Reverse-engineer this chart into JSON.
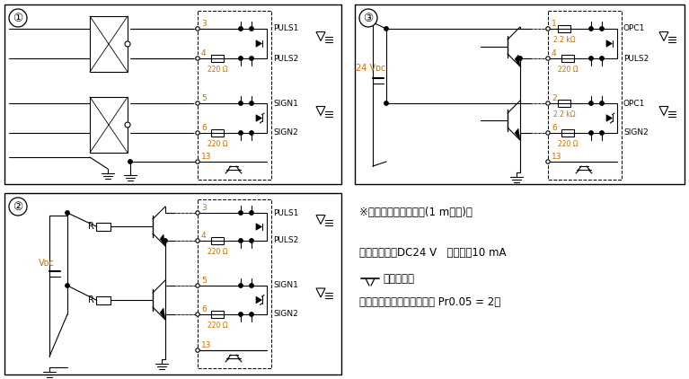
{
  "bg_color": "#ffffff",
  "fig_width": 7.67,
  "fig_height": 4.22,
  "dpi": 100,
  "note1": "※配线长度，请控制在(1 m以内)。",
  "note2": "最大输入电压DC24 V   额定电全10 mA",
  "note3": "为双给线。",
  "note4": "使用开路集电极时推荐设定 Pr0.05 = 2。",
  "puls1": "PULS1",
  "puls2": "PULS2",
  "sign1": "SIGN1",
  "sign2": "SIGN2",
  "opc1_label": "OPC1",
  "r220": "220 Ω",
  "r22k": "2.2 kΩ",
  "vdc_label": "Vᴅᴄ",
  "v24_label": "24 Vᴅᴄ",
  "pin3": "3",
  "pin4": "4",
  "pin5": "5",
  "pin6": "6",
  "pin13": "13",
  "pin1": "1",
  "pin2": "2",
  "R_label": "R"
}
